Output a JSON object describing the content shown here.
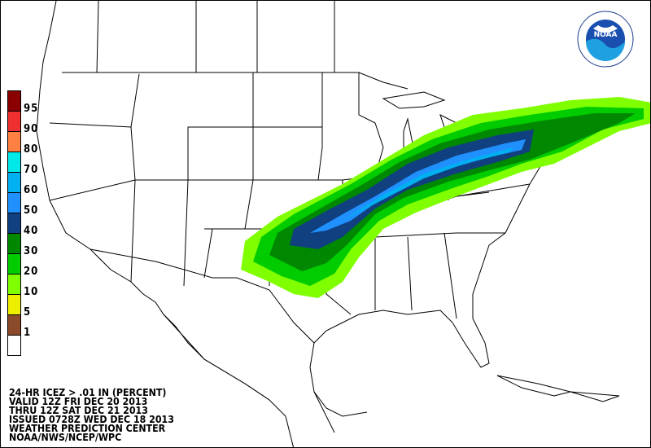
{
  "legend": [
    {
      "label": "95",
      "color": "#8B0000"
    },
    {
      "label": "90",
      "color": "#EE3030"
    },
    {
      "label": "80",
      "color": "#FF8040"
    },
    {
      "label": "70",
      "color": "#00E8E8"
    },
    {
      "label": "60",
      "color": "#00B0F0"
    },
    {
      "label": "50",
      "color": "#2090FF"
    },
    {
      "label": "40",
      "color": "#104080"
    },
    {
      "label": "30",
      "color": "#008800"
    },
    {
      "label": "20",
      "color": "#00CC00"
    },
    {
      "label": "10",
      "color": "#80FF00"
    },
    {
      "label": "5",
      "color": "#EEEE00"
    },
    {
      "label": "1",
      "color": "#8B4A2A"
    },
    {
      "label": "",
      "color": "#FFFFFF"
    }
  ],
  "info": {
    "line1": "24-HR ICEZ > .01 IN (PERCENT)",
    "line2": "VALID 12Z FRI DEC 20 2013",
    "line3": "THRU 12Z SAT DEC 21 2013",
    "line4": "ISSUED 0728Z WED DEC 18 2013",
    "line5": "WEATHER PREDICTION CENTER",
    "line6": "NOAA/NWS/NCEP/WPC"
  },
  "logo": {
    "text": "NOAA"
  }
}
